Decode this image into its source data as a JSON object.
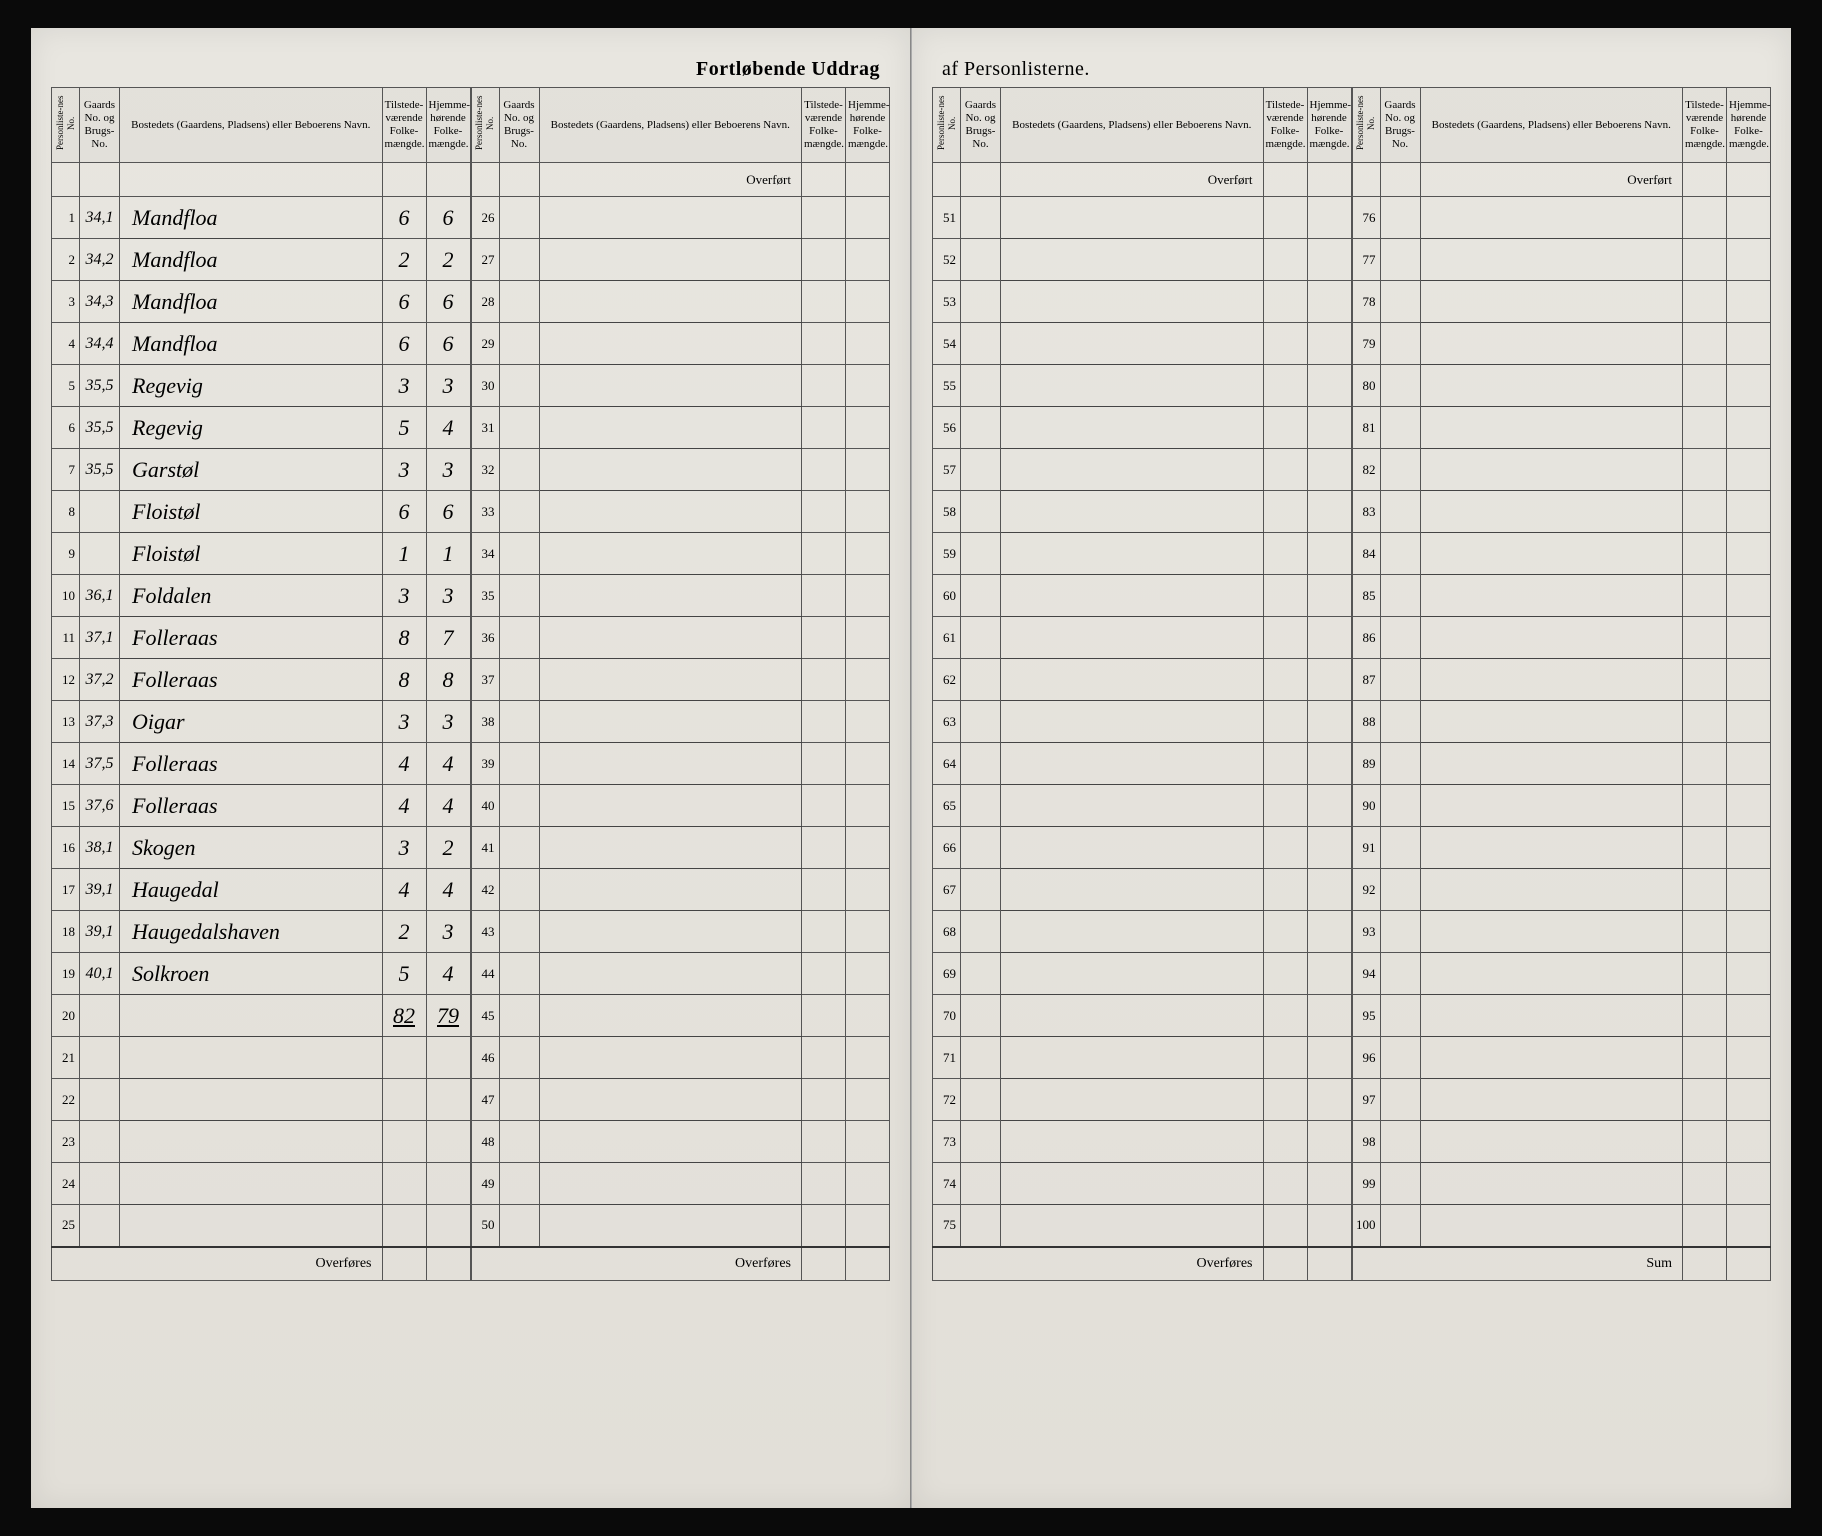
{
  "title_left": "Fortløbende Uddrag",
  "title_right": "af Personlisterne.",
  "headers": {
    "person_no": "Personliste-nes No.",
    "gaard_no": "Gaards No. og Brugs-No.",
    "bosted": "Bostedets (Gaardens, Pladsens) eller Beboerens Navn.",
    "tilstede": "Tilstede-værende Folke-mængde.",
    "hjemme": "Hjemme-hørende Folke-mængde."
  },
  "labels": {
    "overfort": "Overført",
    "overfores": "Overføres",
    "sum": "Sum"
  },
  "entries": [
    {
      "no": "1",
      "gaard": "34,1",
      "name": "Mandfloa",
      "t": "6",
      "h": "6"
    },
    {
      "no": "2",
      "gaard": "34,2",
      "name": "Mandfloa",
      "t": "2",
      "h": "2"
    },
    {
      "no": "3",
      "gaard": "34,3",
      "name": "Mandfloa",
      "t": "6",
      "h": "6"
    },
    {
      "no": "4",
      "gaard": "34,4",
      "name": "Mandfloa",
      "t": "6",
      "h": "6"
    },
    {
      "no": "5",
      "gaard": "35,5",
      "name": "Regevig",
      "t": "3",
      "h": "3"
    },
    {
      "no": "6",
      "gaard": "35,5",
      "name": "Regevig",
      "t": "5",
      "h": "4"
    },
    {
      "no": "7",
      "gaard": "35,5",
      "name": "Garstøl",
      "t": "3",
      "h": "3"
    },
    {
      "no": "8",
      "gaard": "",
      "name": "Floistøl",
      "t": "6",
      "h": "6"
    },
    {
      "no": "9",
      "gaard": "",
      "name": "Floistøl",
      "t": "1",
      "h": "1"
    },
    {
      "no": "10",
      "gaard": "36,1",
      "name": "Foldalen",
      "t": "3",
      "h": "3"
    },
    {
      "no": "11",
      "gaard": "37,1",
      "name": "Folleraas",
      "t": "8",
      "h": "7"
    },
    {
      "no": "12",
      "gaard": "37,2",
      "name": "Folleraas",
      "t": "8",
      "h": "8"
    },
    {
      "no": "13",
      "gaard": "37,3",
      "name": "Oigar",
      "t": "3",
      "h": "3"
    },
    {
      "no": "14",
      "gaard": "37,5",
      "name": "Folleraas",
      "t": "4",
      "h": "4"
    },
    {
      "no": "15",
      "gaard": "37,6",
      "name": "Folleraas",
      "t": "4",
      "h": "4"
    },
    {
      "no": "16",
      "gaard": "38,1",
      "name": "Skogen",
      "t": "3",
      "h": "2"
    },
    {
      "no": "17",
      "gaard": "39,1",
      "name": "Haugedal",
      "t": "4",
      "h": "4"
    },
    {
      "no": "18",
      "gaard": "39,1",
      "name": "Haugedalshaven",
      "t": "2",
      "h": "3"
    },
    {
      "no": "19",
      "gaard": "40,1",
      "name": "Solkroen",
      "t": "5",
      "h": "4"
    },
    {
      "no": "20",
      "gaard": "",
      "name": "",
      "t": "82",
      "h": "79"
    },
    {
      "no": "21",
      "gaard": "",
      "name": "",
      "t": "",
      "h": ""
    },
    {
      "no": "22",
      "gaard": "",
      "name": "",
      "t": "",
      "h": ""
    },
    {
      "no": "23",
      "gaard": "",
      "name": "",
      "t": "",
      "h": ""
    },
    {
      "no": "24",
      "gaard": "",
      "name": "",
      "t": "",
      "h": ""
    },
    {
      "no": "25",
      "gaard": "",
      "name": "",
      "t": "",
      "h": ""
    }
  ],
  "empty_ranges": {
    "block2_start": 26,
    "block2_end": 50,
    "block3_start": 51,
    "block3_end": 75,
    "block4_start": 76,
    "block4_end": 100
  },
  "colors": {
    "paper": "#e5e2db",
    "ink": "#2a2a2a",
    "rule": "#555555"
  }
}
